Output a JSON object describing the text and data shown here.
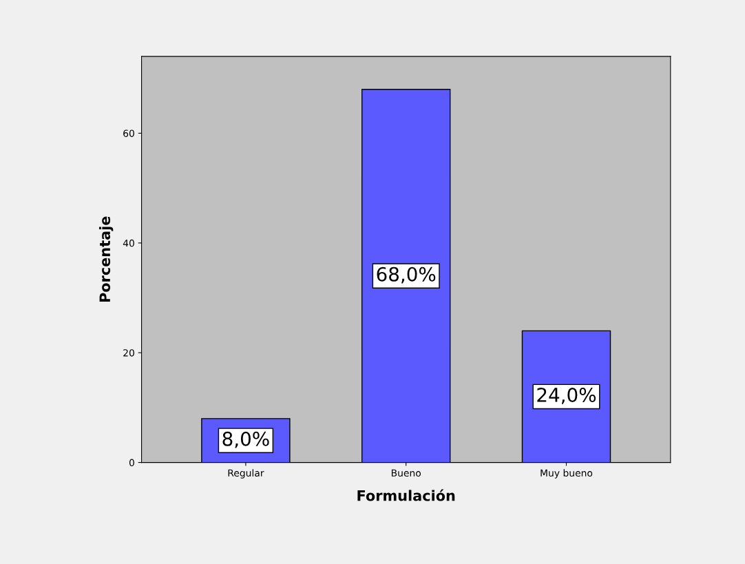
{
  "chart_data": {
    "type": "bar",
    "xlabel": "Formulación",
    "ylabel": "Porcentaje",
    "categories": [
      "Regular",
      "Bueno",
      "Muy bueno"
    ],
    "values": [
      8,
      68,
      24
    ],
    "value_labels": [
      "8,0%",
      "68,0%",
      "24,0%"
    ],
    "color": "#5a5aff",
    "ylim": [
      0,
      74
    ],
    "yticks": [
      0,
      20,
      40,
      60
    ],
    "grid": false,
    "legend": false
  }
}
